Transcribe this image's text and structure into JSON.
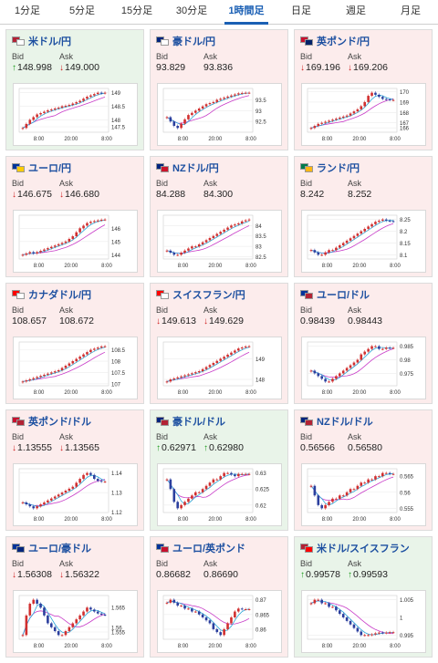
{
  "tabs": [
    {
      "label": "1分足",
      "active": false
    },
    {
      "label": "5分足",
      "active": false
    },
    {
      "label": "15分足",
      "active": false
    },
    {
      "label": "30分足",
      "active": false
    },
    {
      "label": "1時間足",
      "active": true
    },
    {
      "label": "日足",
      "active": false
    },
    {
      "label": "週足",
      "active": false
    },
    {
      "label": "月足",
      "active": false
    }
  ],
  "labels": {
    "bid": "Bid",
    "ask": "Ask"
  },
  "colors": {
    "up": "#1a9a1a",
    "down": "#d02020",
    "candle_up": "#d12f2f",
    "candle_down": "#2b3f9e",
    "ma_short": "#2aa7d9",
    "ma_long": "#c83cc8"
  },
  "pairs": [
    {
      "id": "usdjpy",
      "name": "米ドル/円",
      "flag": [
        "#b22234",
        "#ffffff"
      ],
      "trend": "up",
      "bid": "148.998",
      "bid_dir": "up",
      "ask": "149.000",
      "ask_dir": "down",
      "yticks": [
        "149",
        "148.5",
        "148",
        "147.5"
      ],
      "xticks": [
        "8:00",
        "20:00",
        "8:00"
      ],
      "series": [
        147.7,
        147.85,
        148.0,
        148.1,
        148.2,
        148.25,
        148.3,
        148.35,
        148.38,
        148.42,
        148.45,
        148.5,
        148.52,
        148.55,
        148.6,
        148.65,
        148.7,
        148.78,
        148.85,
        148.9,
        148.95,
        149.0,
        148.98,
        149.0
      ]
    },
    {
      "id": "audjpy",
      "name": "豪ドル/円",
      "flag": [
        "#00247d",
        "#ffffff"
      ],
      "trend": "down",
      "bid": "93.829",
      "bid_dir": "none",
      "ask": "93.836",
      "ask_dir": "none",
      "yticks": [
        "93.5",
        "93",
        "92.5"
      ],
      "xticks": [
        "8:00",
        "20:00",
        "8:00"
      ],
      "series": [
        92.7,
        92.5,
        92.3,
        92.2,
        92.4,
        92.6,
        92.8,
        92.9,
        93.0,
        93.1,
        93.2,
        93.3,
        93.35,
        93.4,
        93.5,
        93.55,
        93.6,
        93.65,
        93.7,
        93.75,
        93.8,
        93.82,
        93.83,
        93.83
      ]
    },
    {
      "id": "gbpjpy",
      "name": "英ポンド/円",
      "flag": [
        "#c8102e",
        "#012169"
      ],
      "trend": "down",
      "bid": "169.196",
      "bid_dir": "down",
      "ask": "169.206",
      "ask_dir": "down",
      "yticks": [
        "170",
        "169",
        "168",
        "167",
        "166"
      ],
      "xticks": [
        "8:00",
        "20:00",
        "8:00"
      ],
      "series": [
        166.5,
        166.7,
        166.9,
        167.0,
        167.1,
        167.2,
        167.3,
        167.4,
        167.5,
        167.6,
        167.7,
        167.9,
        168.1,
        168.3,
        168.6,
        169.0,
        169.6,
        169.9,
        169.7,
        169.5,
        169.3,
        169.25,
        169.2,
        169.2
      ]
    },
    {
      "id": "eurjpy",
      "name": "ユーロ/円",
      "flag": [
        "#003399",
        "#ffcc00"
      ],
      "trend": "down",
      "bid": "146.675",
      "bid_dir": "down",
      "ask": "146.680",
      "ask_dir": "down",
      "yticks": [
        "146",
        "145",
        "144"
      ],
      "xticks": [
        "8:00",
        "20:00",
        "8:00"
      ],
      "series": [
        144.0,
        144.1,
        144.2,
        144.1,
        144.2,
        144.3,
        144.4,
        144.5,
        144.6,
        144.7,
        144.8,
        144.9,
        145.0,
        145.2,
        145.4,
        145.7,
        146.0,
        146.2,
        146.4,
        146.5,
        146.55,
        146.6,
        146.65,
        146.67
      ]
    },
    {
      "id": "nzdjpy",
      "name": "NZドル/円",
      "flag": [
        "#00247d",
        "#cc142b"
      ],
      "trend": "down",
      "bid": "84.288",
      "bid_dir": "none",
      "ask": "84.300",
      "ask_dir": "none",
      "yticks": [
        "84",
        "83.5",
        "83",
        "82.5"
      ],
      "xticks": [
        "8:00",
        "20:00",
        "8:00"
      ],
      "series": [
        82.8,
        82.7,
        82.6,
        82.6,
        82.7,
        82.8,
        82.9,
        83.0,
        83.0,
        83.1,
        83.2,
        83.3,
        83.4,
        83.5,
        83.6,
        83.7,
        83.8,
        83.9,
        84.0,
        84.05,
        84.1,
        84.2,
        84.25,
        84.29
      ]
    },
    {
      "id": "zarjpy",
      "name": "ランド/円",
      "flag": [
        "#007a4d",
        "#ffb612"
      ],
      "trend": "down",
      "bid": "8.242",
      "bid_dir": "none",
      "ask": "8.252",
      "ask_dir": "none",
      "yticks": [
        "8.25",
        "8.2",
        "8.15",
        "8.1"
      ],
      "xticks": [
        "8:00",
        "20:00",
        "8:00"
      ],
      "series": [
        8.12,
        8.11,
        8.1,
        8.1,
        8.11,
        8.12,
        8.12,
        8.13,
        8.14,
        8.15,
        8.16,
        8.17,
        8.18,
        8.19,
        8.2,
        8.21,
        8.22,
        8.23,
        8.24,
        8.245,
        8.25,
        8.245,
        8.243,
        8.242
      ]
    },
    {
      "id": "cadjpy",
      "name": "カナダドル/円",
      "flag": [
        "#ff0000",
        "#ffffff"
      ],
      "trend": "down",
      "bid": "108.657",
      "bid_dir": "none",
      "ask": "108.672",
      "ask_dir": "none",
      "yticks": [
        "108.5",
        "108",
        "107.5",
        "107"
      ],
      "xticks": [
        "8:00",
        "20:00",
        "8:00"
      ],
      "series": [
        107.1,
        107.15,
        107.2,
        107.25,
        107.3,
        107.35,
        107.4,
        107.45,
        107.5,
        107.55,
        107.6,
        107.7,
        107.8,
        107.9,
        108.0,
        108.1,
        108.2,
        108.3,
        108.4,
        108.5,
        108.55,
        108.6,
        108.65,
        108.66
      ]
    },
    {
      "id": "chfjpy",
      "name": "スイスフラン/円",
      "flag": [
        "#ff0000",
        "#ffffff"
      ],
      "trend": "down",
      "bid": "149.613",
      "bid_dir": "down",
      "ask": "149.629",
      "ask_dir": "down",
      "yticks": [
        "149",
        "148"
      ],
      "xticks": [
        "8:00",
        "20:00",
        "8:00"
      ],
      "series": [
        147.9,
        148.0,
        148.05,
        148.1,
        148.15,
        148.2,
        148.25,
        148.3,
        148.35,
        148.4,
        148.5,
        148.6,
        148.7,
        148.8,
        148.9,
        149.0,
        149.1,
        149.2,
        149.3,
        149.4,
        149.5,
        149.55,
        149.6,
        149.61
      ]
    },
    {
      "id": "eurusd",
      "name": "ユーロ/ドル",
      "flag": [
        "#003399",
        "#b22234"
      ],
      "trend": "down",
      "bid": "0.98439",
      "bid_dir": "none",
      "ask": "0.98443",
      "ask_dir": "none",
      "yticks": [
        "0.985",
        "0.98",
        "0.975"
      ],
      "xticks": [
        "8:00",
        "20:00",
        "8:00"
      ],
      "series": [
        0.976,
        0.975,
        0.974,
        0.973,
        0.972,
        0.972,
        0.973,
        0.974,
        0.975,
        0.976,
        0.977,
        0.978,
        0.979,
        0.98,
        0.982,
        0.983,
        0.984,
        0.985,
        0.985,
        0.984,
        0.984,
        0.9845,
        0.9844,
        0.9844
      ]
    },
    {
      "id": "gbpusd",
      "name": "英ポンド/ドル",
      "flag": [
        "#c8102e",
        "#b22234"
      ],
      "trend": "down",
      "bid": "1.13555",
      "bid_dir": "down",
      "ask": "1.13565",
      "ask_dir": "down",
      "yticks": [
        "1.14",
        "1.13",
        "1.12"
      ],
      "xticks": [
        "8:00",
        "20:00",
        "8:00"
      ],
      "series": [
        1.125,
        1.124,
        1.123,
        1.122,
        1.123,
        1.124,
        1.125,
        1.126,
        1.127,
        1.128,
        1.129,
        1.13,
        1.131,
        1.132,
        1.133,
        1.135,
        1.137,
        1.139,
        1.14,
        1.139,
        1.137,
        1.136,
        1.1356,
        1.1356
      ]
    },
    {
      "id": "audusd",
      "name": "豪ドル/ドル",
      "flag": [
        "#00247d",
        "#b22234"
      ],
      "trend": "up",
      "bid": "0.62971",
      "bid_dir": "up",
      "ask": "0.62980",
      "ask_dir": "up",
      "yticks": [
        "0.63",
        "0.625",
        "0.62"
      ],
      "xticks": [
        "8:00",
        "20:00",
        "8:00"
      ],
      "series": [
        0.628,
        0.625,
        0.621,
        0.619,
        0.62,
        0.621,
        0.622,
        0.623,
        0.624,
        0.624,
        0.625,
        0.626,
        0.627,
        0.628,
        0.628,
        0.629,
        0.63,
        0.63,
        0.6295,
        0.629,
        0.6297,
        0.6297,
        0.6297,
        0.6297
      ]
    },
    {
      "id": "nzdusd",
      "name": "NZドル/ドル",
      "flag": [
        "#00247d",
        "#b22234"
      ],
      "trend": "down",
      "bid": "0.56566",
      "bid_dir": "none",
      "ask": "0.56580",
      "ask_dir": "none",
      "yticks": [
        "0.565",
        "0.56",
        "0.555"
      ],
      "xticks": [
        "8:00",
        "20:00",
        "8:00"
      ],
      "series": [
        0.562,
        0.559,
        0.556,
        0.555,
        0.556,
        0.557,
        0.558,
        0.558,
        0.559,
        0.559,
        0.56,
        0.561,
        0.561,
        0.562,
        0.563,
        0.563,
        0.564,
        0.564,
        0.565,
        0.565,
        0.566,
        0.566,
        0.5657,
        0.5657
      ]
    },
    {
      "id": "euraud",
      "name": "ユーロ/豪ドル",
      "flag": [
        "#003399",
        "#00247d"
      ],
      "trend": "down",
      "bid": "1.56308",
      "bid_dir": "down",
      "ask": "1.56322",
      "ask_dir": "down",
      "yticks": [
        "1.565",
        "1.56",
        "1.555"
      ],
      "xticks": [
        "8:00",
        "20:00",
        "8:00"
      ],
      "series": [
        1.558,
        1.563,
        1.566,
        1.567,
        1.566,
        1.565,
        1.563,
        1.561,
        1.56,
        1.559,
        1.558,
        1.558,
        1.559,
        1.56,
        1.561,
        1.562,
        1.563,
        1.564,
        1.565,
        1.5645,
        1.564,
        1.5635,
        1.5632,
        1.5631
      ]
    },
    {
      "id": "eurgbp",
      "name": "ユーロ/英ポンド",
      "flag": [
        "#003399",
        "#c8102e"
      ],
      "trend": "down",
      "bid": "0.86682",
      "bid_dir": "none",
      "ask": "0.86690",
      "ask_dir": "none",
      "yticks": [
        "0.87",
        "0.865",
        "0.86"
      ],
      "xticks": [
        "8:00",
        "20:00",
        "8:00"
      ],
      "series": [
        0.869,
        0.87,
        0.869,
        0.868,
        0.868,
        0.867,
        0.867,
        0.866,
        0.866,
        0.865,
        0.864,
        0.863,
        0.862,
        0.86,
        0.859,
        0.858,
        0.86,
        0.862,
        0.864,
        0.866,
        0.867,
        0.8668,
        0.8668,
        0.8668
      ]
    },
    {
      "id": "usdchf",
      "name": "米ドル/スイスフラン",
      "flag": [
        "#b22234",
        "#ff0000"
      ],
      "trend": "up",
      "bid": "0.99578",
      "bid_dir": "up",
      "ask": "0.99593",
      "ask_dir": "up",
      "yticks": [
        "1.005",
        "1",
        "0.995"
      ],
      "xticks": [
        "8:00",
        "20:00",
        "8:00"
      ],
      "series": [
        1.004,
        1.005,
        1.005,
        1.004,
        1.004,
        1.003,
        1.003,
        1.002,
        1.001,
        1.0,
        0.999,
        0.998,
        0.997,
        0.996,
        0.995,
        0.995,
        0.995,
        0.9952,
        0.9955,
        0.9957,
        0.9956,
        0.9957,
        0.9958,
        0.9958
      ]
    }
  ]
}
